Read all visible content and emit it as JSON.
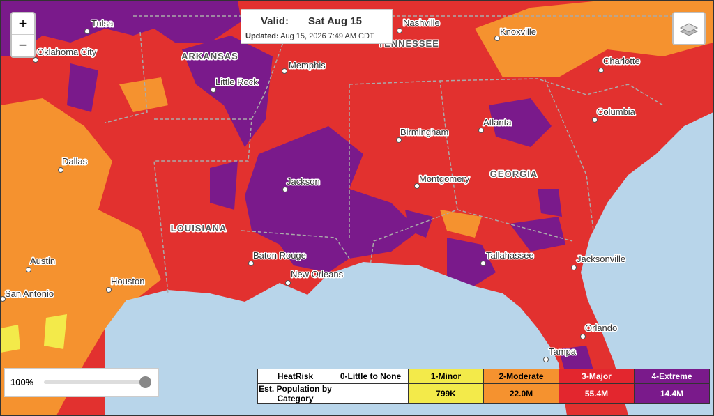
{
  "controls": {
    "zoom_in": "+",
    "zoom_out": "−",
    "opacity": "100%"
  },
  "valid_box": {
    "valid_label": "Valid:",
    "valid_date": "Sat Aug 15",
    "updated_label": "Updated:",
    "updated_time": "Aug 15, 2026 7:49 AM CDT"
  },
  "states": [
    "ARKANSAS",
    "TENNESSEE",
    "LOUISIANA",
    "GEORGIA"
  ],
  "cities": [
    "Tulsa",
    "Oklahoma City",
    "Nashville",
    "Knoxville",
    "Memphis",
    "Little Rock",
    "Charlotte",
    "Columbia",
    "Birmingham",
    "Atlanta",
    "Dallas",
    "Jackson",
    "Montgomery",
    "Austin",
    "San Antonio",
    "Houston",
    "Baton Rouge",
    "New Orleans",
    "Tallahassee",
    "Jacksonville",
    "Orlando",
    "Tampa"
  ],
  "legend": {
    "title": "HeatRisk",
    "row_label": "Est. Population by Category",
    "categories": [
      {
        "label": "0-Little to None",
        "color": "#ffffff"
      },
      {
        "label": "1-Minor",
        "color": "#f3ea4a",
        "population": "799K"
      },
      {
        "label": "2-Moderate",
        "color": "#f5922f",
        "population": "22.0M"
      },
      {
        "label": "3-Major",
        "color": "#e3262e",
        "population": "55.4M"
      },
      {
        "label": "4-Extreme",
        "color": "#7a1a8b",
        "population": "14.4M"
      }
    ]
  }
}
